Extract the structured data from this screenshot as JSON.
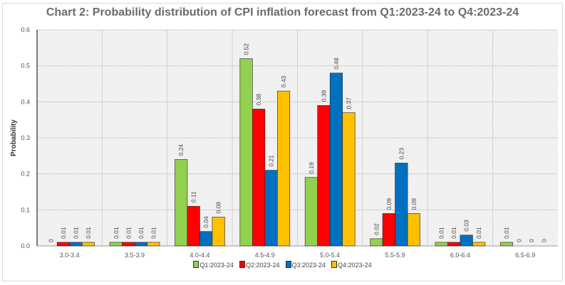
{
  "chart_data": {
    "type": "bar",
    "title": "Chart 2: Probability distribution of  CPI inflation forecast from Q1:2023-24 to Q4:2023-24",
    "xlabel": "",
    "ylabel": "Probability",
    "ylim": [
      0,
      0.6
    ],
    "yticks": [
      "0.0",
      "0.1",
      "0.2",
      "0.3",
      "0.4",
      "0.5",
      "0.6"
    ],
    "grid": true,
    "legend": "bottom",
    "categories": [
      "3.0-3.4",
      "3.5-3.9",
      "4.0-4.4",
      "4.5-4.9",
      "5.0-5.4",
      "5.5-5.9",
      "6.0-6.4",
      "6.5-6.9"
    ],
    "series": [
      {
        "name": "Q1:2023-24",
        "color": "#92d050",
        "values": [
          0,
          0.01,
          0.24,
          0.52,
          0.19,
          0.02,
          0.01,
          0.01
        ]
      },
      {
        "name": "Q2:2023-24",
        "color": "#ff0000",
        "values": [
          0.01,
          0.01,
          0.11,
          0.38,
          0.39,
          0.09,
          0.01,
          0
        ]
      },
      {
        "name": "Q3:2023-24",
        "color": "#0070c0",
        "values": [
          0.01,
          0.01,
          0.04,
          0.21,
          0.48,
          0.23,
          0.03,
          0
        ]
      },
      {
        "name": "Q4:2023-24",
        "color": "#ffc000",
        "values": [
          0.01,
          0.01,
          0.08,
          0.43,
          0.37,
          0.09,
          0.01,
          0
        ]
      }
    ]
  }
}
